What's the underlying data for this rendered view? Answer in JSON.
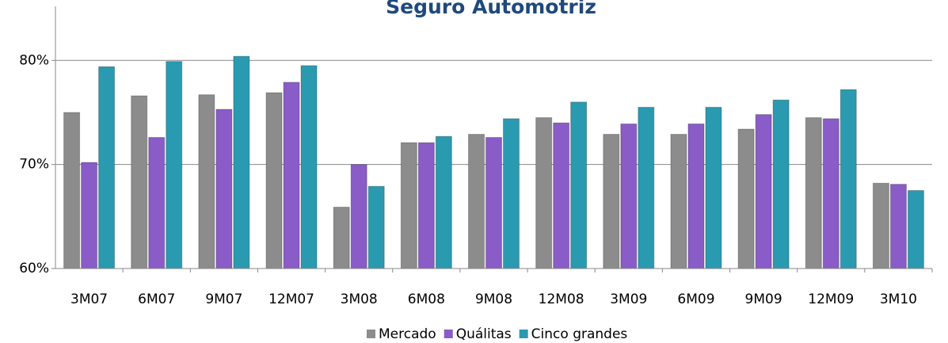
{
  "chart_data": {
    "type": "bar",
    "title": "Seguro Automotriz",
    "categories": [
      "3M07",
      "6M07",
      "9M07",
      "12M07",
      "3M08",
      "6M08",
      "9M08",
      "12M08",
      "3M09",
      "6M09",
      "9M09",
      "12M09",
      "3M10"
    ],
    "series": [
      {
        "name": "Mercado",
        "color": "#8c8c8c",
        "values": [
          75.0,
          76.6,
          76.7,
          76.9,
          65.9,
          72.1,
          72.9,
          74.5,
          72.9,
          72.9,
          73.4,
          74.5,
          68.2
        ]
      },
      {
        "name": "Quálitas",
        "color": "#8a5cc7",
        "values": [
          70.2,
          72.6,
          75.3,
          77.9,
          70.0,
          72.1,
          72.6,
          74.0,
          73.9,
          73.9,
          74.8,
          74.4,
          68.1
        ]
      },
      {
        "name": "Cinco grandes",
        "color": "#2a9ab0",
        "values": [
          79.4,
          79.9,
          80.4,
          79.5,
          67.9,
          72.7,
          74.4,
          76.0,
          75.5,
          75.5,
          76.2,
          77.2,
          67.5
        ]
      }
    ],
    "ylim": [
      60,
      85.2
    ],
    "yticks": [
      {
        "value": 60,
        "label": "60%"
      },
      {
        "value": 70,
        "label": "70%"
      },
      {
        "value": 80,
        "label": "80%"
      }
    ],
    "grid": true,
    "legend": "bottom"
  }
}
